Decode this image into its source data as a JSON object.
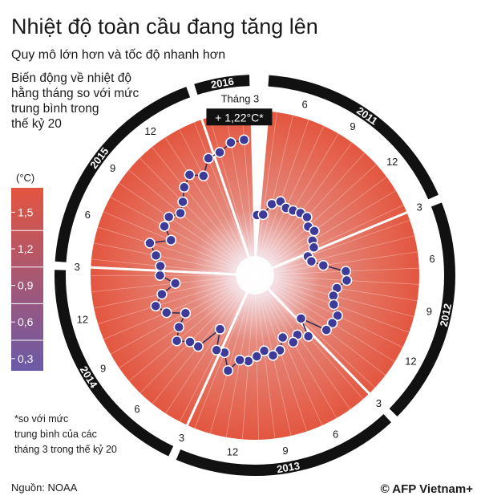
{
  "chart_data": {
    "type": "radial-line",
    "title": "Nhiệt độ toàn cầu đang tăng lên",
    "subtitle": "Quy mô lớn hơn và tốc độ nhanh hơn",
    "description": [
      "Biến động về nhiệt độ",
      "hằng tháng so với mức",
      "trung bình trong",
      "thế kỷ 20"
    ],
    "point_color": "#3d3a99",
    "rlim": [
      0,
      1.5
    ],
    "series": [
      {
        "name": "2011",
        "month_labels": [
          6,
          9,
          12
        ],
        "values": [
          0.46,
          0.47,
          0.59,
          0.64,
          0.6,
          0.61,
          0.63,
          0.64,
          0.58,
          0.6,
          0.53,
          0.51
        ]
      },
      {
        "name": "2012",
        "month_labels": [
          3,
          6,
          9,
          12
        ],
        "values": [
          0.42,
          0.44,
          0.55,
          0.77,
          0.78,
          0.69,
          0.67,
          0.7,
          0.78,
          0.77,
          0.76,
          0.49
        ]
      },
      {
        "name": "2013",
        "month_labels": [
          3,
          6,
          9,
          12
        ],
        "values": [
          0.67,
          0.59,
          0.63,
          0.54,
          0.65,
          0.68,
          0.62,
          0.67,
          0.72,
          0.72,
          0.85,
          0.69
        ]
      },
      {
        "name": "2014",
        "month_labels": [
          3,
          6,
          9,
          12
        ],
        "values": [
          0.7,
          0.5,
          0.77,
          0.79,
          0.88,
          0.78,
          0.65,
          0.82,
          0.9,
          0.81,
          0.66,
          0.81
        ]
      },
      {
        "name": "2015",
        "month_labels": [
          3,
          6,
          9,
          12
        ],
        "values": [
          0.81,
          0.87,
          0.96,
          0.77,
          0.89,
          0.9,
          0.83,
          0.89,
          0.99,
          1.06,
          0.98,
          1.12
        ]
      },
      {
        "name": "2016",
        "month_labels": [],
        "values": [
          1.14,
          1.21,
          1.22
        ]
      }
    ],
    "callout": {
      "month": "Tháng 3",
      "text": "+ 1,22°C*"
    },
    "colorbar": {
      "unit": "(°C)",
      "lim": [
        0.2,
        1.7
      ],
      "colors": [
        "#e3553f",
        "#6a5aa8"
      ],
      "ticks": [
        {
          "value": 1.5,
          "label": "1,5"
        },
        {
          "value": 1.2,
          "label": "1,2"
        },
        {
          "value": 0.9,
          "label": "0,9"
        },
        {
          "value": 0.6,
          "label": "0,6"
        },
        {
          "value": 0.3,
          "label": "0,3"
        }
      ]
    },
    "footnote": [
      "*so với mức",
      "trung bình của các",
      "tháng 3 trong thế kỷ 20"
    ],
    "source": "Nguồn: NOAA",
    "credit": "© AFP Vietnam+"
  }
}
